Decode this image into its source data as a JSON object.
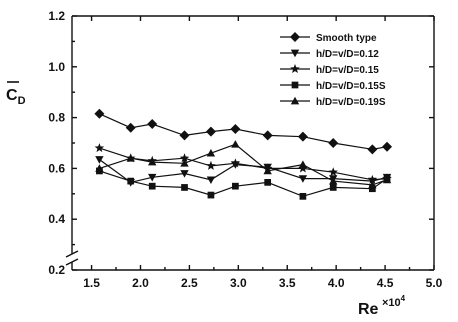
{
  "chart_data": {
    "type": "line",
    "xlabel": "Re",
    "x_exponent_label": "×10",
    "x_exponent_power": "4",
    "ylabel": "C",
    "ylabel_sub": "D",
    "xlim": [
      1.3,
      5.0
    ],
    "ylim": [
      0.2,
      1.2
    ],
    "y_axis_break": [
      0.2,
      0.4
    ],
    "x_ticks": [
      "1.5",
      "2.0",
      "2.5",
      "3.0",
      "3.5",
      "4.0",
      "4.5",
      "5.0"
    ],
    "x_tick_values": [
      1.5,
      2.0,
      2.5,
      3.0,
      3.5,
      4.0,
      4.5,
      5.0
    ],
    "y_ticks": [
      "0.2",
      "0.4",
      "0.6",
      "0.8",
      "1.0",
      "1.2"
    ],
    "y_tick_values": [
      0.2,
      0.4,
      0.6,
      0.8,
      1.0,
      1.2
    ],
    "legend_position": "top-right",
    "series": [
      {
        "name": "Smooth type",
        "marker": "diamond",
        "x": [
          1.58,
          1.9,
          2.12,
          2.45,
          2.72,
          2.97,
          3.3,
          3.66,
          3.97,
          4.37,
          4.52
        ],
        "y": [
          0.815,
          0.76,
          0.775,
          0.73,
          0.745,
          0.755,
          0.73,
          0.725,
          0.7,
          0.675,
          0.685
        ]
      },
      {
        "name": "h/D=v/D=0.12",
        "marker": "triangle-down",
        "x": [
          1.58,
          1.9,
          2.12,
          2.45,
          2.72,
          2.97,
          3.3,
          3.66,
          3.97,
          4.37,
          4.52
        ],
        "y": [
          0.635,
          0.545,
          0.565,
          0.58,
          0.555,
          0.615,
          0.605,
          0.56,
          0.56,
          0.55,
          0.565
        ]
      },
      {
        "name": "h/D=v/D=0.15",
        "marker": "star",
        "x": [
          1.58,
          1.9,
          2.12,
          2.45,
          2.72,
          2.97,
          3.3,
          3.66,
          3.97,
          4.37,
          4.52
        ],
        "y": [
          0.68,
          0.64,
          0.63,
          0.64,
          0.61,
          0.62,
          0.6,
          0.6,
          0.585,
          0.555,
          0.56
        ]
      },
      {
        "name": "h/D=v/D=0.15S",
        "marker": "square",
        "x": [
          1.58,
          1.9,
          2.12,
          2.45,
          2.72,
          2.97,
          3.3,
          3.66,
          3.97,
          4.37,
          4.52
        ],
        "y": [
          0.59,
          0.55,
          0.53,
          0.525,
          0.495,
          0.53,
          0.545,
          0.49,
          0.525,
          0.52,
          0.56
        ]
      },
      {
        "name": "h/D=v/D=0.19S",
        "marker": "triangle-up",
        "x": [
          1.58,
          1.9,
          2.12,
          2.45,
          2.72,
          2.97,
          3.3,
          3.66,
          3.97,
          4.37,
          4.52
        ],
        "y": [
          0.6,
          0.64,
          0.625,
          0.62,
          0.66,
          0.695,
          0.59,
          0.615,
          0.55,
          0.535,
          0.555
        ]
      }
    ]
  }
}
